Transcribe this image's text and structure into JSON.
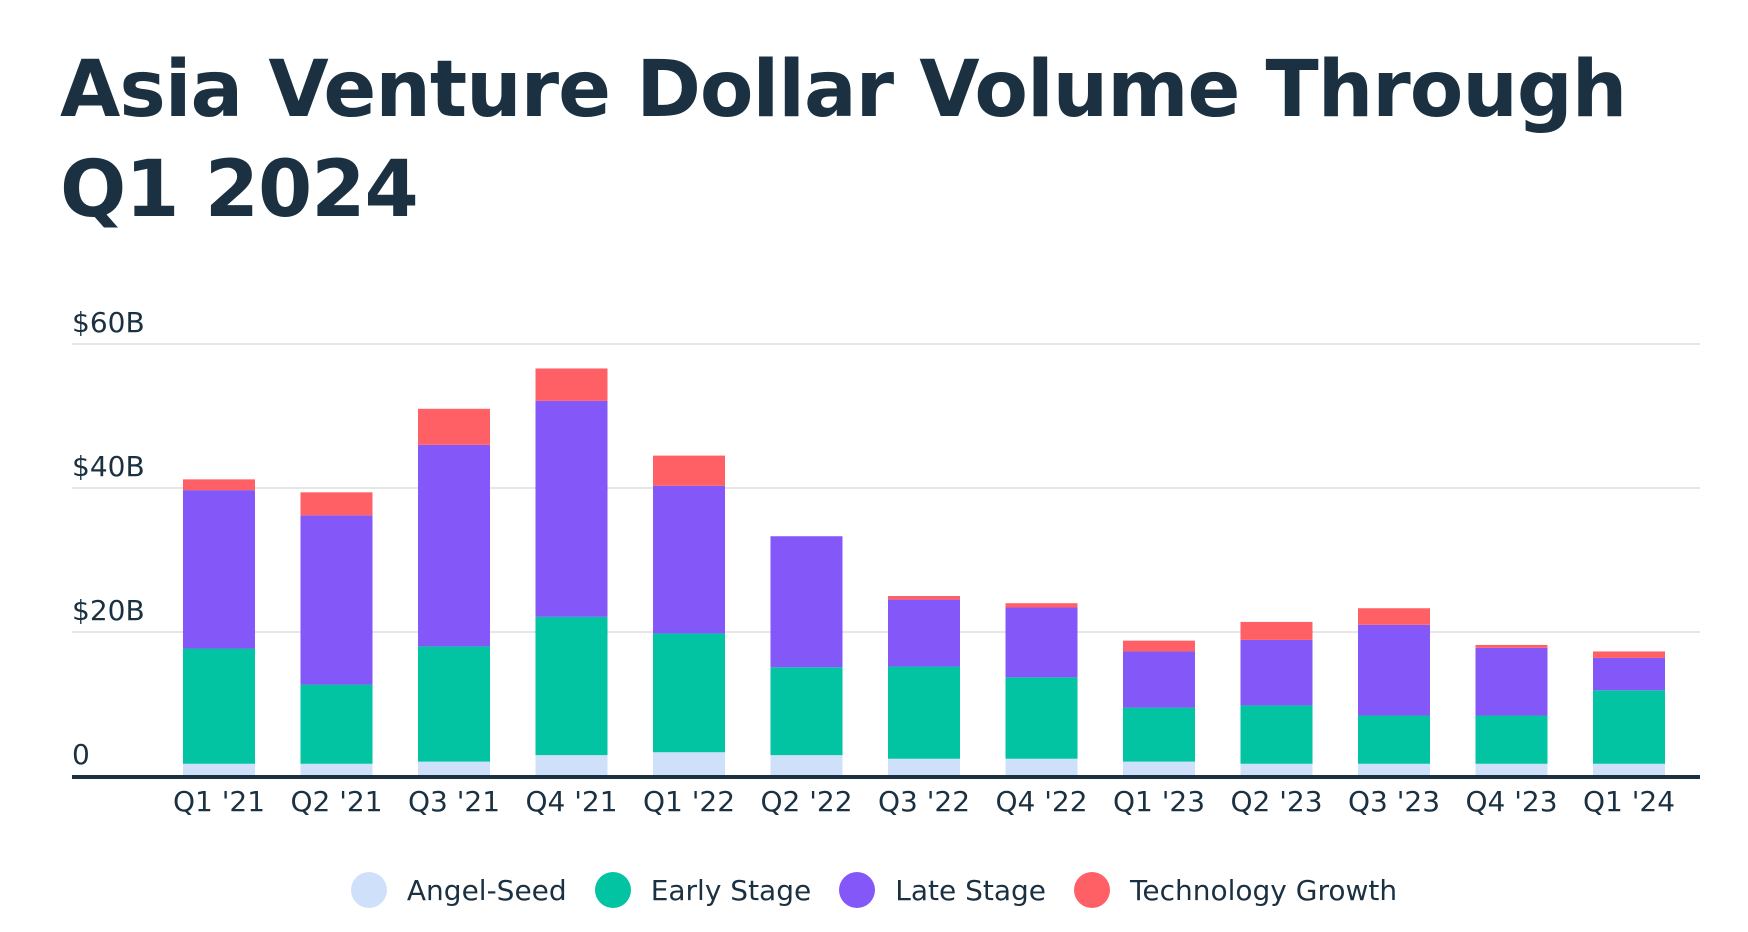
{
  "title": "Asia Venture Dollar Volume Through Q1 2024",
  "chart_data": {
    "type": "bar",
    "stacked": true,
    "title": "Asia Venture Dollar Volume Through Q1 2024",
    "xlabel": "",
    "ylabel": "",
    "ylim": [
      0,
      60
    ],
    "yticks": [
      0,
      20,
      40,
      60
    ],
    "ytick_labels": [
      "0",
      "$20B",
      "$40B",
      "$60B"
    ],
    "grid": true,
    "legend_position": "bottom",
    "categories": [
      "Q1 '21",
      "Q2 '21",
      "Q3 '21",
      "Q4 '21",
      "Q1 '22",
      "Q2 '22",
      "Q3 '22",
      "Q4 '22",
      "Q1 '23",
      "Q2 '23",
      "Q3 '23",
      "Q4 '23",
      "Q1 '24"
    ],
    "series": [
      {
        "name": "Angel-Seed",
        "color": "#cfe0fb",
        "values": [
          1.7,
          1.7,
          2.0,
          2.9,
          3.3,
          2.9,
          2.4,
          2.4,
          2.0,
          1.7,
          1.7,
          1.7,
          1.7
        ]
      },
      {
        "name": "Early Stage",
        "color": "#02c3a2",
        "values": [
          16.0,
          11.0,
          16.0,
          19.2,
          16.5,
          12.2,
          12.8,
          11.3,
          7.5,
          8.1,
          6.7,
          6.7,
          10.2
        ]
      },
      {
        "name": "Late Stage",
        "color": "#8457f9",
        "values": [
          22.0,
          23.5,
          28.0,
          30.0,
          20.5,
          18.2,
          9.3,
          9.7,
          7.8,
          9.1,
          12.6,
          9.4,
          4.5
        ]
      },
      {
        "name": "Technology Growth",
        "color": "#ff6065",
        "values": [
          1.5,
          3.2,
          5.0,
          4.5,
          4.2,
          0.0,
          0.5,
          0.6,
          1.5,
          2.5,
          2.3,
          0.4,
          0.9
        ]
      }
    ]
  }
}
